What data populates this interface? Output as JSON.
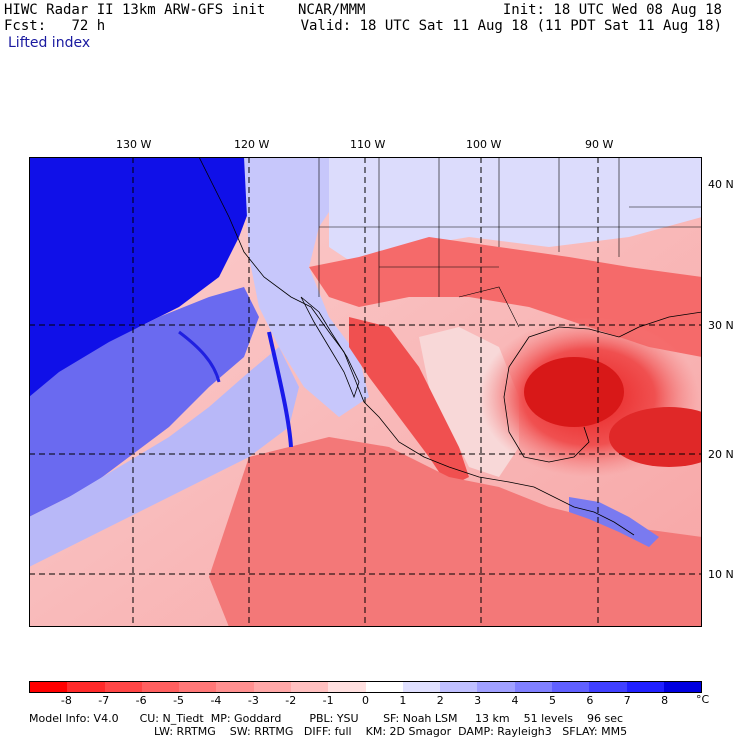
{
  "header": {
    "model": "HIWC Radar II 13km ARW-GFS init",
    "org": "NCAR/MMM",
    "fcst_label": "Fcst:",
    "fcst_hours": "72 h",
    "init": "Init: 18 UTC Wed 08 Aug 18",
    "valid": "Valid: 18 UTC Sat 11 Aug 18 (11 PDT Sat 11 Aug 18)",
    "variable": "Lifted index"
  },
  "map": {
    "lon_labels": [
      "130 W",
      "120 W",
      "110 W",
      "100 W",
      "90 W"
    ],
    "lat_labels": [
      "40 N",
      "30 N",
      "20 N",
      "10 N"
    ]
  },
  "colorbar": {
    "ticks": [
      "-8",
      "-7",
      "-6",
      "-5",
      "-4",
      "-3",
      "-2",
      "-1",
      "0",
      "1",
      "2",
      "3",
      "4",
      "5",
      "6",
      "7",
      "8"
    ],
    "unit": "°C",
    "colors": [
      "#ff0000",
      "#ff2a2a",
      "#ff4646",
      "#ff6060",
      "#ff7878",
      "#ff9090",
      "#ffa8a8",
      "#ffc0c0",
      "#ffe0e0",
      "#ffffff",
      "#e0e0ff",
      "#c0c0ff",
      "#a0a0ff",
      "#8080ff",
      "#6060ff",
      "#4040ff",
      "#2020ff",
      "#0000e0"
    ]
  },
  "footer": {
    "line1": [
      "Model Info: V4.0",
      "CU: N_Tiedt",
      "MP: Goddard",
      "PBL: YSU",
      "SF: Noah LSM",
      "13 km",
      "51 levels",
      "96 sec"
    ],
    "line2": [
      "LW: RRTMG",
      "SW: RRTMG",
      "DIFF: full",
      "KM: 2D Smagor",
      "DAMP: Rayleigh3",
      "SFLAY: MM5"
    ]
  }
}
